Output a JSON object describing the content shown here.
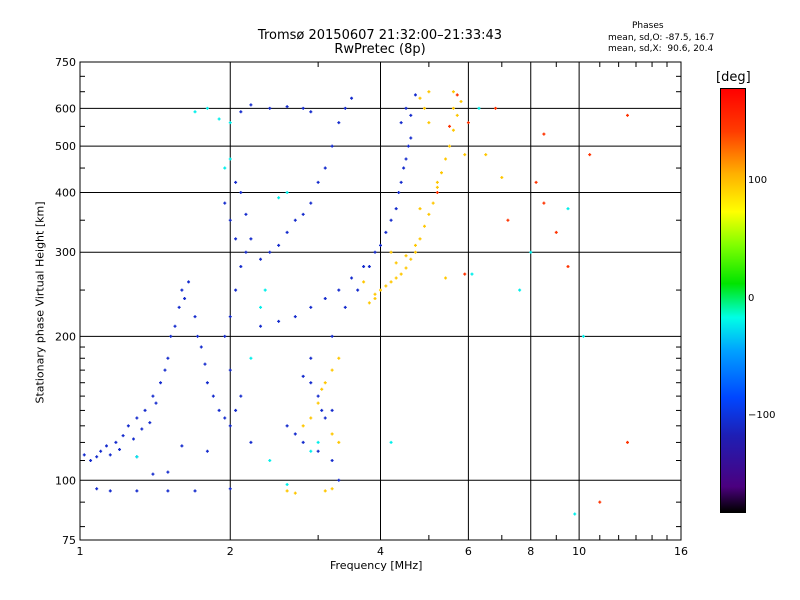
{
  "header": {
    "title_line1": "Tromsø 20150607 21:32:00–21:33:43",
    "title_line2": "RwPretec (8p)",
    "stats_heading": "Phases",
    "stats_o": "mean, sd,O: -87.5, 16.7",
    "stats_x": "mean, sd,X:  90.6, 20.4"
  },
  "colorbar": {
    "unit": "[deg]",
    "ticks": [
      "100",
      "0",
      "−100"
    ],
    "tick_values": [
      100,
      0,
      -100
    ],
    "range": [
      -180,
      180
    ]
  },
  "chart_data": {
    "type": "scatter",
    "xlabel": "Frequency [MHz]",
    "ylabel": "Stationary phase Virtual Height [km]",
    "x_scale": "log",
    "y_scale": "log",
    "xlim": [
      1,
      16
    ],
    "ylim": [
      75,
      750
    ],
    "x_ticks": [
      1,
      2,
      4,
      6,
      8,
      10,
      16
    ],
    "x_tick_labels": [
      "1",
      "2",
      "4",
      "6",
      "8",
      "10",
      "16"
    ],
    "y_ticks": [
      75,
      100,
      200,
      300,
      400,
      500,
      600,
      750
    ],
    "y_tick_labels": [
      "75",
      "100",
      "200",
      "300",
      "400",
      "500",
      "600",
      "750"
    ],
    "grid": true,
    "color_encoding": "phase [deg]",
    "series": [
      {
        "points": [
          [
            1.02,
            113
          ],
          [
            1.05,
            110
          ],
          [
            1.08,
            112
          ],
          [
            1.1,
            115
          ],
          [
            1.13,
            118
          ],
          [
            1.15,
            113
          ],
          [
            1.18,
            120
          ],
          [
            1.2,
            116
          ],
          [
            1.22,
            124
          ],
          [
            1.25,
            130
          ],
          [
            1.28,
            122
          ],
          [
            1.3,
            135
          ],
          [
            1.33,
            128
          ],
          [
            1.35,
            140
          ],
          [
            1.38,
            132
          ],
          [
            1.4,
            150
          ],
          [
            1.42,
            145
          ],
          [
            1.45,
            160
          ],
          [
            1.48,
            170
          ],
          [
            1.5,
            180
          ],
          [
            1.52,
            200
          ],
          [
            1.55,
            210
          ],
          [
            1.58,
            230
          ],
          [
            1.6,
            250
          ],
          [
            1.62,
            240
          ],
          [
            1.65,
            260
          ],
          [
            1.7,
            220
          ],
          [
            1.72,
            200
          ],
          [
            1.75,
            190
          ],
          [
            1.78,
            175
          ],
          [
            1.8,
            160
          ],
          [
            1.85,
            150
          ],
          [
            1.9,
            140
          ],
          [
            1.95,
            135
          ],
          [
            2.0,
            130
          ],
          [
            2.05,
            140
          ],
          [
            2.1,
            150
          ],
          [
            2.0,
            170
          ],
          [
            1.95,
            200
          ],
          [
            2.0,
            220
          ],
          [
            2.05,
            250
          ],
          [
            2.1,
            280
          ],
          [
            2.15,
            300
          ],
          [
            2.05,
            320
          ],
          [
            2.0,
            350
          ],
          [
            1.95,
            380
          ],
          [
            2.05,
            420
          ],
          [
            2.1,
            400
          ],
          [
            2.15,
            360
          ],
          [
            2.2,
            320
          ],
          [
            2.3,
            290
          ],
          [
            2.4,
            300
          ],
          [
            2.5,
            310
          ],
          [
            2.6,
            330
          ],
          [
            2.7,
            350
          ],
          [
            2.8,
            360
          ],
          [
            2.9,
            380
          ],
          [
            3.0,
            420
          ],
          [
            3.1,
            450
          ],
          [
            3.2,
            500
          ],
          [
            3.3,
            560
          ],
          [
            3.4,
            600
          ],
          [
            3.5,
            630
          ],
          [
            2.1,
            590
          ],
          [
            2.2,
            610
          ],
          [
            2.4,
            600
          ],
          [
            2.6,
            605
          ],
          [
            2.8,
            600
          ],
          [
            2.9,
            590
          ],
          [
            1.3,
            112
          ],
          [
            1.6,
            118
          ],
          [
            1.8,
            115
          ],
          [
            2.2,
            120
          ],
          [
            2.3,
            210
          ],
          [
            2.5,
            215
          ],
          [
            2.7,
            220
          ],
          [
            2.9,
            230
          ],
          [
            3.1,
            240
          ],
          [
            3.3,
            250
          ],
          [
            3.5,
            265
          ],
          [
            3.7,
            280
          ],
          [
            3.9,
            300
          ],
          [
            4.1,
            330
          ],
          [
            4.3,
            370
          ],
          [
            4.4,
            420
          ],
          [
            4.5,
            470
          ],
          [
            4.6,
            520
          ],
          [
            4.6,
            580
          ],
          [
            4.7,
            640
          ],
          [
            4.5,
            600
          ],
          [
            4.4,
            560
          ],
          [
            3.2,
            110
          ],
          [
            3.3,
            100
          ],
          [
            3.4,
            230
          ],
          [
            3.6,
            250
          ],
          [
            3.8,
            280
          ],
          [
            4.0,
            310
          ],
          [
            4.2,
            350
          ],
          [
            4.35,
            400
          ],
          [
            4.45,
            450
          ],
          [
            4.55,
            500
          ],
          [
            1.08,
            96
          ],
          [
            1.15,
            95
          ],
          [
            1.3,
            95
          ],
          [
            1.5,
            95
          ],
          [
            1.7,
            95
          ],
          [
            2.0,
            96
          ],
          [
            1.4,
            103
          ],
          [
            1.5,
            104
          ],
          [
            2.6,
            130
          ],
          [
            2.7,
            125
          ],
          [
            2.8,
            120
          ],
          [
            3.0,
            115
          ],
          [
            2.8,
            165
          ],
          [
            2.9,
            160
          ],
          [
            3.0,
            150
          ],
          [
            3.05,
            140
          ],
          [
            3.1,
            135
          ],
          [
            3.2,
            140
          ],
          [
            3.2,
            200
          ],
          [
            2.9,
            180
          ]
        ],
        "color_values": [
          -100
        ]
      },
      {
        "points": [
          [
            3.8,
            235
          ],
          [
            3.9,
            245
          ],
          [
            4.0,
            250
          ],
          [
            4.1,
            255
          ],
          [
            4.2,
            260
          ],
          [
            4.3,
            265
          ],
          [
            4.4,
            270
          ],
          [
            4.5,
            278
          ],
          [
            4.6,
            290
          ],
          [
            4.7,
            300
          ],
          [
            4.8,
            320
          ],
          [
            4.9,
            340
          ],
          [
            5.0,
            360
          ],
          [
            5.1,
            380
          ],
          [
            5.2,
            410
          ],
          [
            5.3,
            440
          ],
          [
            5.4,
            470
          ],
          [
            5.5,
            500
          ],
          [
            5.6,
            540
          ],
          [
            5.7,
            580
          ],
          [
            5.8,
            620
          ],
          [
            5.6,
            650
          ],
          [
            5.0,
            650
          ],
          [
            5.9,
            480
          ],
          [
            5.2,
            420
          ],
          [
            4.8,
            370
          ],
          [
            4.2,
            300
          ],
          [
            4.3,
            285
          ],
          [
            4.5,
            295
          ],
          [
            4.7,
            310
          ],
          [
            3.7,
            260
          ],
          [
            3.9,
            240
          ],
          [
            5.4,
            265
          ],
          [
            4.8,
            630
          ],
          [
            4.9,
            600
          ],
          [
            5.0,
            560
          ],
          [
            2.6,
            95
          ],
          [
            2.7,
            94
          ],
          [
            3.1,
            95
          ],
          [
            3.2,
            96
          ],
          [
            2.8,
            130
          ],
          [
            2.9,
            135
          ],
          [
            3.0,
            145
          ],
          [
            3.1,
            160
          ],
          [
            3.2,
            170
          ],
          [
            3.05,
            155
          ],
          [
            3.3,
            180
          ],
          [
            3.3,
            120
          ],
          [
            3.2,
            125
          ],
          [
            6.5,
            480
          ],
          [
            7.0,
            430
          ],
          [
            5.6,
            600
          ]
        ],
        "color_values": [
          100
        ]
      },
      {
        "points": [
          [
            5.2,
            400
          ],
          [
            5.5,
            550
          ],
          [
            5.7,
            640
          ],
          [
            6.8,
            600
          ],
          [
            7.2,
            350
          ],
          [
            5.9,
            270
          ],
          [
            6.0,
            560
          ],
          [
            10.5,
            480
          ],
          [
            9.0,
            330
          ],
          [
            9.5,
            280
          ],
          [
            12.5,
            120
          ],
          [
            12.5,
            580
          ],
          [
            11,
            90
          ],
          [
            8.2,
            420
          ],
          [
            8.5,
            380
          ],
          [
            8.5,
            530
          ]
        ],
        "color_values": [
          150
        ]
      },
      {
        "points": [
          [
            1.7,
            590
          ],
          [
            1.8,
            600
          ],
          [
            1.9,
            570
          ],
          [
            2.0,
            560
          ],
          [
            2.3,
            230
          ],
          [
            2.35,
            250
          ],
          [
            2.5,
            390
          ],
          [
            2.6,
            400
          ],
          [
            2.2,
            180
          ],
          [
            2.4,
            110
          ],
          [
            2.6,
            98
          ],
          [
            1.3,
            112
          ],
          [
            2.9,
            115
          ],
          [
            3.0,
            120
          ],
          [
            2.0,
            470
          ],
          [
            1.95,
            450
          ],
          [
            6.3,
            600
          ],
          [
            9.8,
            85
          ],
          [
            8.0,
            300
          ],
          [
            10.2,
            200
          ],
          [
            9.5,
            370
          ],
          [
            7.6,
            250
          ],
          [
            6.1,
            270
          ],
          [
            4.2,
            120
          ]
        ],
        "color_values": [
          -20
        ]
      }
    ]
  }
}
